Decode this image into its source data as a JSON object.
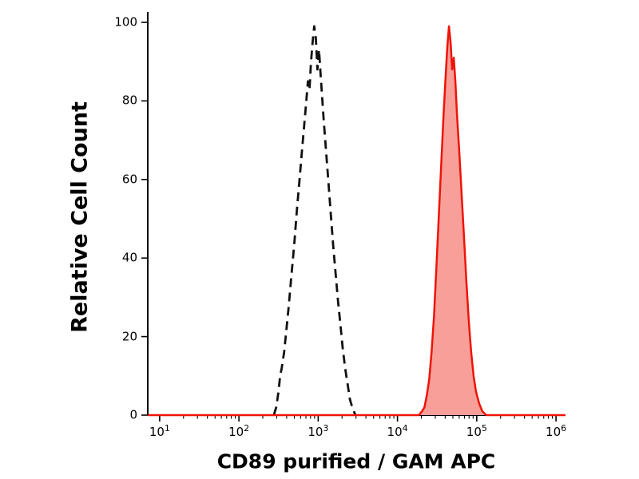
{
  "chart_data": {
    "type": "area",
    "title": "",
    "xlabel": "CD89 purified / GAM APC",
    "ylabel": "Relative Cell Count",
    "x_scale": "log10",
    "x_tick_base": "10",
    "x_tick_exponents": [
      1,
      2,
      3,
      4,
      5,
      6
    ],
    "xlim_log10": [
      1,
      6
    ],
    "ylim": [
      0,
      100
    ],
    "y_ticks": [
      0,
      20,
      40,
      60,
      80,
      100
    ],
    "grid": false,
    "legend": "none",
    "background_color": "#ffffff",
    "axis_color": "#000000",
    "baseline_color": "#ee1407",
    "series": [
      {
        "name": "dashed_open_curve",
        "line_style": "dashed",
        "color": "#111111",
        "fill": "none",
        "peak_log10x": 2.96,
        "peak_y": 99,
        "points": [
          [
            2.44,
            0
          ],
          [
            2.47,
            2
          ],
          [
            2.5,
            6
          ],
          [
            2.52,
            10
          ],
          [
            2.54,
            12
          ],
          [
            2.57,
            16
          ],
          [
            2.6,
            22
          ],
          [
            2.63,
            28
          ],
          [
            2.66,
            35
          ],
          [
            2.7,
            44
          ],
          [
            2.73,
            52
          ],
          [
            2.76,
            59
          ],
          [
            2.79,
            66
          ],
          [
            2.82,
            73
          ],
          [
            2.85,
            80
          ],
          [
            2.87,
            85
          ],
          [
            2.89,
            83
          ],
          [
            2.91,
            90
          ],
          [
            2.93,
            95
          ],
          [
            2.95,
            99
          ],
          [
            2.97,
            96
          ],
          [
            2.99,
            88
          ],
          [
            3.01,
            93
          ],
          [
            3.03,
            87
          ],
          [
            3.05,
            81
          ],
          [
            3.07,
            75
          ],
          [
            3.1,
            67
          ],
          [
            3.13,
            59
          ],
          [
            3.16,
            51
          ],
          [
            3.19,
            43
          ],
          [
            3.22,
            36
          ],
          [
            3.25,
            29
          ],
          [
            3.28,
            23
          ],
          [
            3.31,
            17
          ],
          [
            3.34,
            12
          ],
          [
            3.37,
            8
          ],
          [
            3.4,
            4
          ],
          [
            3.43,
            2
          ],
          [
            3.47,
            0
          ]
        ]
      },
      {
        "name": "red_filled_curve",
        "line_style": "solid",
        "color": "#ee1407",
        "fill": "#f89f99",
        "peak_log10x": 4.65,
        "peak_y": 99,
        "points": [
          [
            4.27,
            0
          ],
          [
            4.31,
            1
          ],
          [
            4.34,
            2
          ],
          [
            4.37,
            5
          ],
          [
            4.4,
            9
          ],
          [
            4.43,
            16
          ],
          [
            4.46,
            25
          ],
          [
            4.49,
            37
          ],
          [
            4.52,
            50
          ],
          [
            4.55,
            63
          ],
          [
            4.58,
            76
          ],
          [
            4.61,
            87
          ],
          [
            4.63,
            94
          ],
          [
            4.65,
            99
          ],
          [
            4.67,
            95
          ],
          [
            4.69,
            88
          ],
          [
            4.71,
            91
          ],
          [
            4.73,
            85
          ],
          [
            4.75,
            77
          ],
          [
            4.78,
            67
          ],
          [
            4.81,
            56
          ],
          [
            4.84,
            45
          ],
          [
            4.87,
            34
          ],
          [
            4.9,
            24
          ],
          [
            4.93,
            16
          ],
          [
            4.96,
            10
          ],
          [
            4.99,
            6
          ],
          [
            5.03,
            3
          ],
          [
            5.07,
            1
          ],
          [
            5.12,
            0
          ]
        ]
      }
    ]
  }
}
